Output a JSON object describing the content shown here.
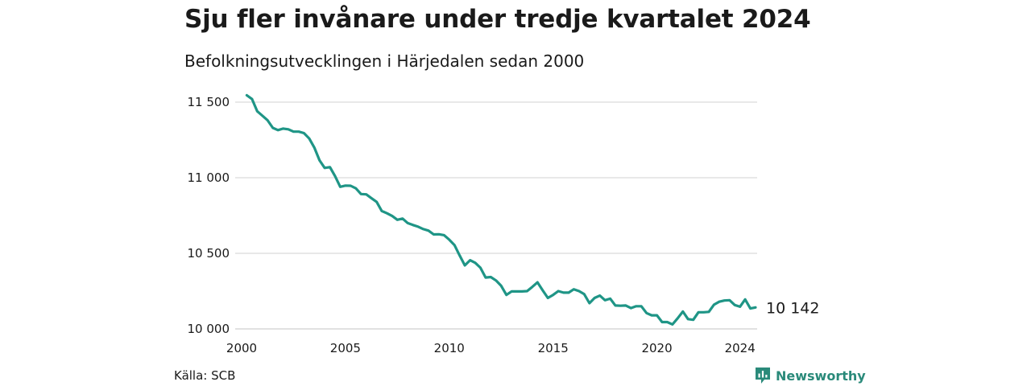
{
  "header": {
    "title": "Sju fler invånare under tredje kvartalet 2024",
    "subtitle": "Befolkningsutvecklingen i Härjedalen sedan 2000"
  },
  "footer": {
    "source": "Källa: SCB",
    "brand": "Newsworthy",
    "brand_icon": "newsworthy-logo-icon"
  },
  "colors": {
    "line": "#1f9586",
    "grid": "#d9d9d9",
    "brand": "#2a8a7a"
  },
  "chart_data": {
    "type": "line",
    "title": "Sju fler invånare under tredje kvartalet 2024",
    "subtitle": "Befolkningsutvecklingen i Härjedalen sedan 2000",
    "xlabel": "",
    "ylabel": "",
    "x_ticks": [
      2000,
      2005,
      2010,
      2015,
      2020,
      2024
    ],
    "x_tick_labels": [
      "2000",
      "2005",
      "2010",
      "2015",
      "2020",
      "2024"
    ],
    "y_ticks": [
      10000,
      10500,
      11000,
      11500
    ],
    "y_tick_labels": [
      "10 000",
      "10 500",
      "11 000",
      "11 500"
    ],
    "xlim": [
      2000,
      2024.75
    ],
    "ylim": [
      10000,
      11580
    ],
    "grid": "horizontal",
    "end_label": "10 142",
    "x": [
      2000.25,
      2000.5,
      2000.75,
      2001,
      2001.25,
      2001.5,
      2001.75,
      2002,
      2002.25,
      2002.5,
      2002.75,
      2003,
      2003.25,
      2003.5,
      2003.75,
      2004,
      2004.25,
      2004.5,
      2004.75,
      2005,
      2005.25,
      2005.5,
      2005.75,
      2006,
      2006.25,
      2006.5,
      2006.75,
      2007,
      2007.25,
      2007.5,
      2007.75,
      2008,
      2008.25,
      2008.5,
      2008.75,
      2009,
      2009.25,
      2009.5,
      2009.75,
      2010,
      2010.25,
      2010.5,
      2010.75,
      2011,
      2011.25,
      2011.5,
      2011.75,
      2012,
      2012.25,
      2012.5,
      2012.75,
      2013,
      2013.25,
      2013.5,
      2013.75,
      2014,
      2014.25,
      2014.5,
      2014.75,
      2015,
      2015.25,
      2015.5,
      2015.75,
      2016,
      2016.25,
      2016.5,
      2016.75,
      2017,
      2017.25,
      2017.5,
      2017.75,
      2018,
      2018.25,
      2018.5,
      2018.75,
      2019,
      2019.25,
      2019.5,
      2019.75,
      2020,
      2020.25,
      2020.5,
      2020.75,
      2021,
      2021.25,
      2021.5,
      2021.75,
      2022,
      2022.25,
      2022.5,
      2022.75,
      2023,
      2023.25,
      2023.5,
      2023.75,
      2024,
      2024.25,
      2024.5,
      2024.75
    ],
    "series": [
      {
        "values": [
          11545,
          11520,
          11440,
          11410,
          11380,
          11330,
          11315,
          11325,
          11320,
          11305,
          11305,
          11295,
          11260,
          11200,
          11115,
          11065,
          11070,
          11010,
          10940,
          10948,
          10947,
          10930,
          10892,
          10890,
          10865,
          10840,
          10780,
          10765,
          10747,
          10722,
          10730,
          10700,
          10687,
          10676,
          10660,
          10650,
          10625,
          10626,
          10620,
          10590,
          10555,
          10485,
          10420,
          10454,
          10437,
          10405,
          10340,
          10343,
          10320,
          10285,
          10225,
          10248,
          10248,
          10248,
          10250,
          10278,
          10308,
          10255,
          10205,
          10225,
          10250,
          10240,
          10240,
          10262,
          10250,
          10230,
          10170,
          10205,
          10220,
          10190,
          10200,
          10155,
          10153,
          10155,
          10138,
          10150,
          10150,
          10105,
          10090,
          10090,
          10045,
          10045,
          10030,
          10070,
          10115,
          10065,
          10060,
          10110,
          10110,
          10113,
          10160,
          10180,
          10188,
          10190,
          10158,
          10147,
          10195,
          10135,
          10142
        ]
      }
    ]
  }
}
